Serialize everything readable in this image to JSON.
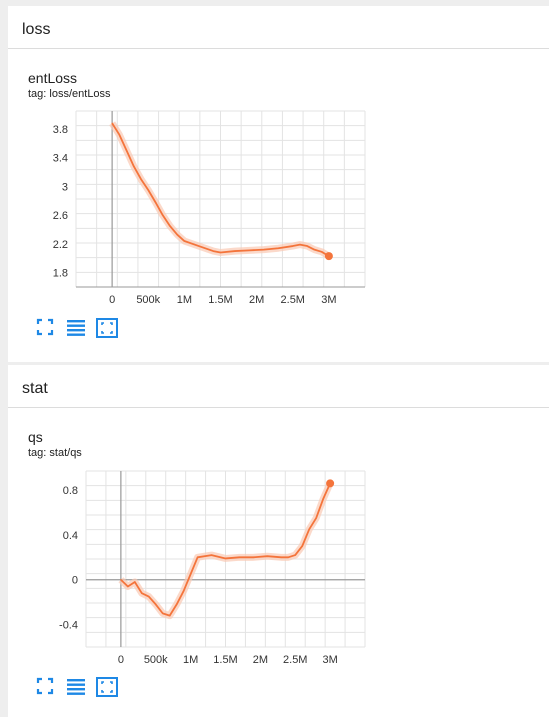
{
  "sections": [
    {
      "title": "loss"
    },
    {
      "title": "stat"
    }
  ],
  "cards": [
    {
      "title": "entLoss",
      "tag": "tag: loss/entLoss"
    },
    {
      "title": "qs",
      "tag": "tag: stat/qs"
    }
  ],
  "colors": {
    "series": "#f4743b",
    "band": "#f9c9b4",
    "axis": "#999999",
    "grid": "#e3e3e3",
    "icon": "#1e88e5"
  },
  "toolbar_icons": [
    "fullscreen-icon",
    "list-icon",
    "fit-domain-icon"
  ],
  "chart_data": [
    {
      "type": "line",
      "title": "entLoss",
      "xlabel": "",
      "ylabel": "",
      "x_ticks": [
        "0",
        "500k",
        "1M",
        "1.5M",
        "2M",
        "2.5M",
        "3M"
      ],
      "x_tick_values": [
        0,
        500000,
        1000000,
        1500000,
        2000000,
        2500000,
        3000000
      ],
      "y_ticks": [
        "1.8",
        "2.2",
        "2.6",
        "3",
        "3.4",
        "3.8"
      ],
      "y_tick_values": [
        1.8,
        2.2,
        2.6,
        3.0,
        3.4,
        3.8
      ],
      "xlim": [
        -500000,
        3500000
      ],
      "ylim": [
        1.6,
        4.05
      ],
      "grid": true,
      "series": [
        {
          "x": [
            0,
            100000,
            200000,
            300000,
            400000,
            500000,
            600000,
            700000,
            800000,
            900000,
            1000000,
            1200000,
            1400000,
            1500000,
            1700000,
            1900000,
            2100000,
            2300000,
            2500000,
            2600000,
            2700000,
            2800000,
            2900000,
            3000000
          ],
          "y": [
            3.88,
            3.72,
            3.5,
            3.28,
            3.1,
            2.95,
            2.78,
            2.6,
            2.45,
            2.33,
            2.24,
            2.17,
            2.1,
            2.08,
            2.1,
            2.11,
            2.12,
            2.14,
            2.17,
            2.19,
            2.17,
            2.12,
            2.09,
            2.03
          ]
        }
      ]
    },
    {
      "type": "line",
      "title": "qs",
      "xlabel": "",
      "ylabel": "",
      "x_ticks": [
        "0",
        "500k",
        "1M",
        "1.5M",
        "2M",
        "2.5M",
        "3M"
      ],
      "x_tick_values": [
        0,
        500000,
        1000000,
        1500000,
        2000000,
        2500000,
        3000000
      ],
      "y_ticks": [
        "-0.4",
        "0",
        "0.4",
        "0.8"
      ],
      "y_tick_values": [
        -0.4,
        0,
        0.4,
        0.8
      ],
      "xlim": [
        -500000,
        3500000
      ],
      "ylim": [
        -0.6,
        0.97
      ],
      "grid": true,
      "series": [
        {
          "x": [
            0,
            100000,
            200000,
            300000,
            400000,
            500000,
            600000,
            700000,
            800000,
            900000,
            1000000,
            1100000,
            1300000,
            1500000,
            1700000,
            1900000,
            2100000,
            2300000,
            2400000,
            2500000,
            2600000,
            2700000,
            2800000,
            2900000,
            3000000
          ],
          "y": [
            0.0,
            -0.06,
            -0.02,
            -0.12,
            -0.15,
            -0.22,
            -0.3,
            -0.32,
            -0.22,
            -0.1,
            0.05,
            0.2,
            0.22,
            0.19,
            0.2,
            0.2,
            0.21,
            0.2,
            0.2,
            0.22,
            0.3,
            0.45,
            0.55,
            0.72,
            0.86
          ]
        }
      ]
    }
  ]
}
